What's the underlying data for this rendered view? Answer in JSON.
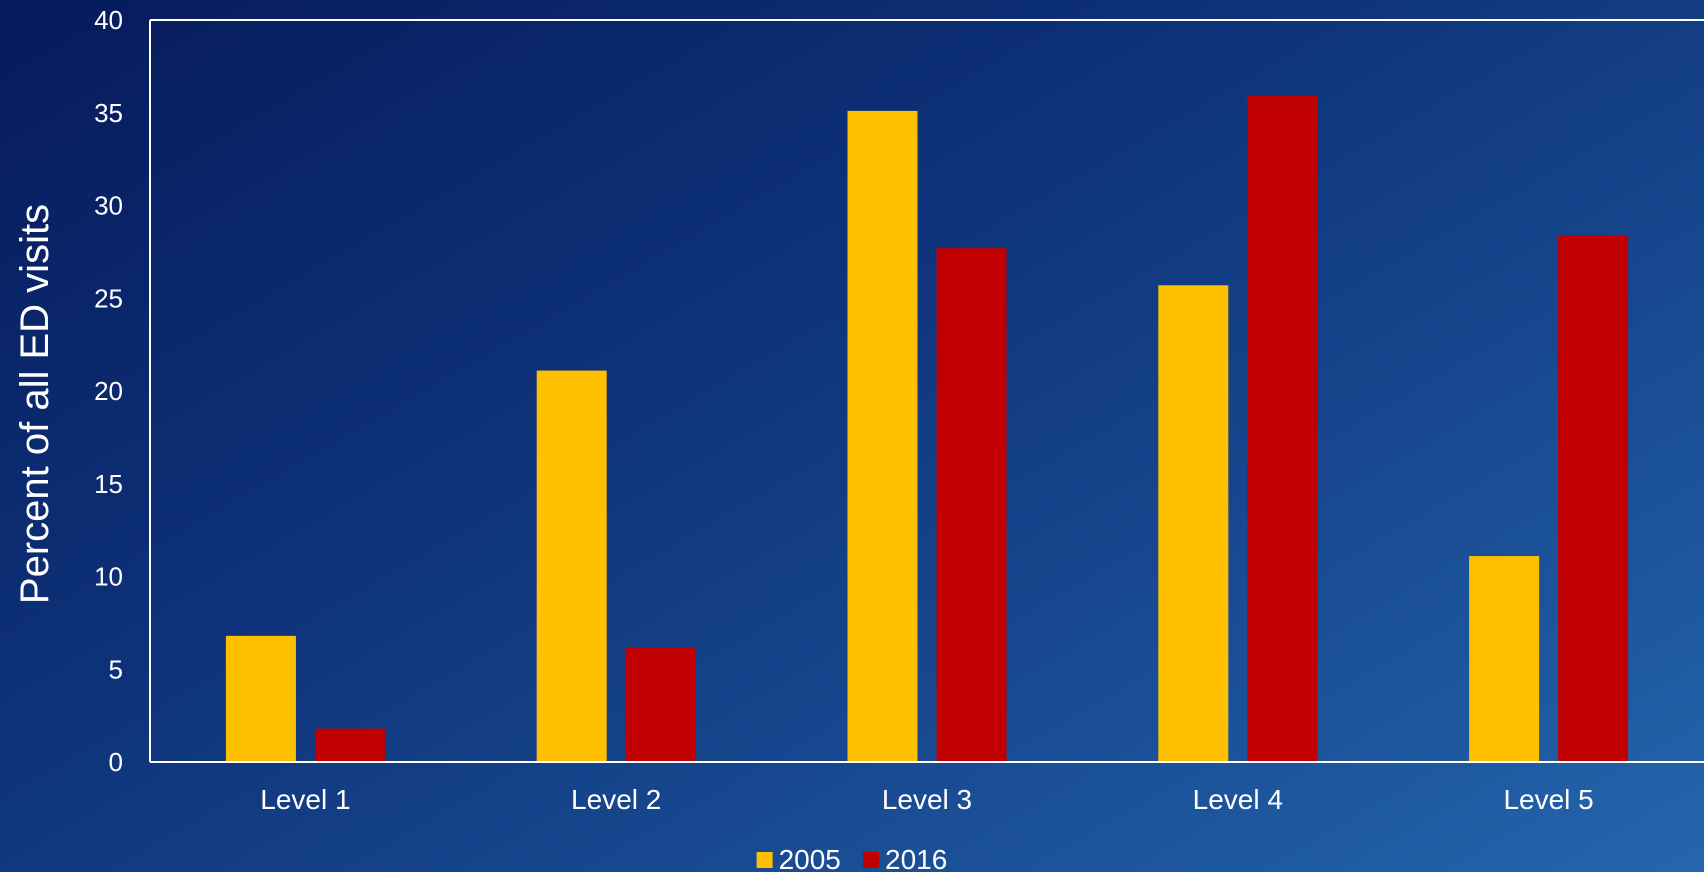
{
  "chart_data": {
    "type": "bar",
    "title": "",
    "xlabel": "",
    "ylabel": "Percent of all ED visits",
    "categories": [
      "Level 1",
      "Level 2",
      "Level 3",
      "Level 4",
      "Level 5"
    ],
    "series": [
      {
        "name": "2005",
        "values": [
          6.8,
          21.1,
          35.1,
          25.7,
          11.1
        ],
        "color": "#FFC000"
      },
      {
        "name": "2016",
        "values": [
          1.8,
          6.2,
          27.7,
          35.9,
          28.4
        ],
        "color": "#C00000"
      }
    ],
    "ylim": [
      0,
      40
    ],
    "yticks": [
      0,
      5,
      10,
      15,
      20,
      25,
      30,
      35,
      40
    ],
    "grid": false,
    "legend_position": "bottom-center",
    "colors": {
      "axis": "#FFFFFF",
      "text": "#FFFFFF"
    }
  }
}
